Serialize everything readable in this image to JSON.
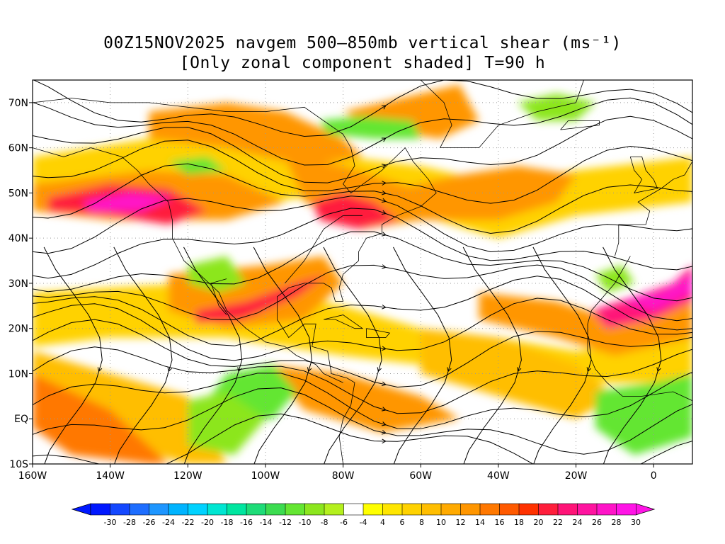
{
  "title": {
    "line1": "00Z15NOV2025 navgem 500–850mb vertical shear (ms⁻¹)",
    "line2": "[Only zonal component shaded] T=90 h"
  },
  "map": {
    "projection": "cylindrical equidistant",
    "lon_range": [
      -160,
      10
    ],
    "lat_range": [
      -10,
      75
    ],
    "lon_tick_labels": [
      "160W",
      "140W",
      "120W",
      "100W",
      "80W",
      "60W",
      "40W",
      "20W",
      "0"
    ],
    "lat_tick_labels": [
      "10S",
      "EQ",
      "10N",
      "20N",
      "30N",
      "40N",
      "50N",
      "60N",
      "70N"
    ],
    "shaded_field": "zonal component of 500–850mb vertical shear (m/s)",
    "overlay": "streamlines of 500–850mb vertical shear vector",
    "grid": "dotted at 20° lon / 10° lat"
  },
  "colorbar": {
    "labels": [
      "-30",
      "-28",
      "-26",
      "-24",
      "-22",
      "-20",
      "-18",
      "-16",
      "-14",
      "-12",
      "-10",
      "-8",
      "-6",
      "-4",
      "4",
      "6",
      "8",
      "10",
      "12",
      "14",
      "16",
      "18",
      "20",
      "22",
      "24",
      "26",
      "28",
      "30"
    ],
    "colors": [
      "#0018ff",
      "#1448ff",
      "#1e6eff",
      "#1e96ff",
      "#00b4ff",
      "#00d2ff",
      "#00e6d2",
      "#00e6a0",
      "#1edc78",
      "#3cdc50",
      "#64e632",
      "#8ce61e",
      "#b4f01e",
      "#ffffff",
      "#ffff00",
      "#ffe600",
      "#ffd200",
      "#ffbe00",
      "#ffaa00",
      "#ff9600",
      "#ff7800",
      "#ff5a00",
      "#ff3200",
      "#ff1e3c",
      "#ff1478",
      "#ff14a0",
      "#ff14c8",
      "#ff14e6"
    ]
  },
  "chart_data": {
    "type": "heatmap",
    "title": "00Z15NOV2025 navgem 500–850mb vertical shear (ms⁻¹)",
    "subtitle": "[Only zonal component shaded] T=90 h",
    "xlim": [
      -160,
      10
    ],
    "ylim": [
      -10,
      75
    ],
    "colorscale_range": [
      -30,
      30
    ],
    "features": [
      {
        "lon": [
          -150,
          -115
        ],
        "lat": [
          42,
          52
        ],
        "value": 28
      },
      {
        "lon": [
          -120,
          -80
        ],
        "lat": [
          20,
          35
        ],
        "value": 22
      },
      {
        "lon": [
          -90,
          -70
        ],
        "lat": [
          40,
          52
        ],
        "value": 22
      },
      {
        "lon": [
          -20,
          10
        ],
        "lat": [
          20,
          32
        ],
        "value": 26
      },
      {
        "lon": [
          -60,
          -20
        ],
        "lat": [
          42,
          58
        ],
        "value": 18
      },
      {
        "lon": [
          -105,
          -95
        ],
        "lat": [
          0,
          8
        ],
        "value": -10
      },
      {
        "lon": [
          -15,
          10
        ],
        "lat": [
          -8,
          8
        ],
        "value": -8
      },
      {
        "lon": [
          -85,
          -60
        ],
        "lat": [
          62,
          68
        ],
        "value": -8
      }
    ]
  }
}
